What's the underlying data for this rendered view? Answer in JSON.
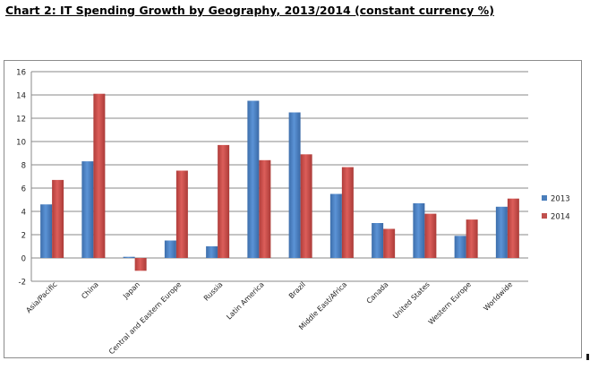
{
  "page": {
    "heading": "Chart 2: IT Spending Growth by Geography, 2013/2014 (constant currency %)"
  },
  "chart_data": {
    "type": "bar",
    "title": "",
    "xlabel": "",
    "ylabel": "",
    "ylim": [
      -2,
      16
    ],
    "yticks": [
      16,
      14,
      12,
      10,
      8,
      6,
      4,
      2,
      0,
      -2
    ],
    "grid": true,
    "legend_position": "right",
    "categories": [
      "Asia/Pacific",
      "China",
      "Japan",
      "Central and Eastern Europe",
      "Russia",
      "Latin America",
      "Brazil",
      "Middle East/Africa",
      "Canada",
      "United States",
      "Western Europe",
      "Worldwide"
    ],
    "series": [
      {
        "name": "2013",
        "color": "#4a7ebb",
        "values": [
          4.6,
          8.3,
          0.1,
          1.5,
          1.0,
          13.5,
          12.5,
          5.5,
          3.0,
          4.7,
          1.9,
          4.4
        ]
      },
      {
        "name": "2014",
        "color": "#c0504d",
        "values": [
          6.7,
          14.1,
          -1.1,
          7.5,
          9.7,
          8.4,
          8.9,
          7.8,
          2.5,
          3.8,
          3.3,
          5.1
        ]
      }
    ]
  }
}
